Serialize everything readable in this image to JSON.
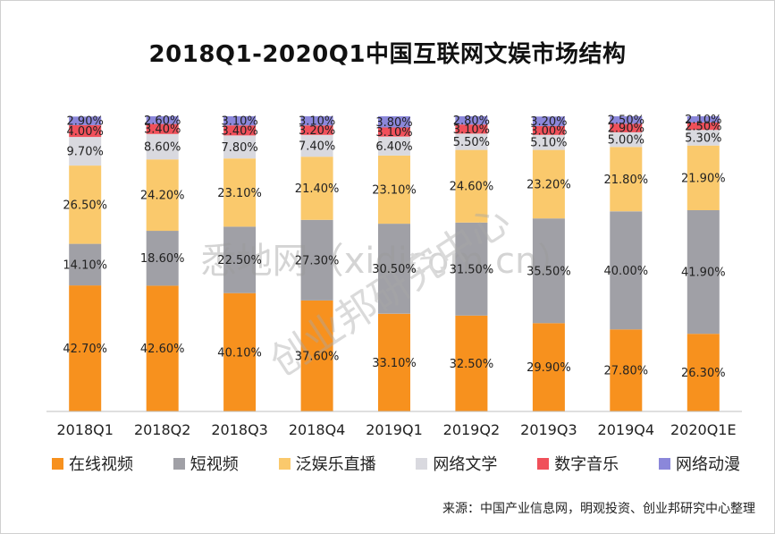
{
  "title": "2018Q1-2020Q1中国互联网文娱市场结构",
  "source": "来源：中国产业信息网，明观投资、创业邦研究中心整理",
  "watermark": {
    "line1": "悉地网（xidicom.cn）",
    "line2": "创业邦研究中心"
  },
  "colors": {
    "online_video": "#F7911E",
    "short_video": "#A0A0A6",
    "live": "#FAC96C",
    "literature": "#D9D9DF",
    "music": "#F0505A",
    "anime": "#8B87DA"
  },
  "chart_data": {
    "type": "bar",
    "stacked": true,
    "title": "2018Q1-2020Q1中国互联网文娱市场结构",
    "categories": [
      "2018Q1",
      "2018Q2",
      "2018Q3",
      "2018Q4",
      "2019Q1",
      "2019Q2",
      "2019Q3",
      "2019Q4",
      "2020Q1E"
    ],
    "ylim": [
      0,
      100
    ],
    "grid": false,
    "legend_position": "bottom",
    "series": [
      {
        "name": "在线视频",
        "color": "#F7911E",
        "values": [
          42.7,
          42.6,
          40.1,
          37.6,
          33.1,
          32.5,
          29.9,
          27.8,
          26.3
        ],
        "labels": [
          "42.70%",
          "42.60%",
          "40.10%",
          "37.60%",
          "33.10%",
          "32.50%",
          "29.90%",
          "27.80%",
          "26.30%"
        ]
      },
      {
        "name": "短视频",
        "color": "#A0A0A6",
        "values": [
          14.1,
          18.6,
          22.5,
          27.3,
          30.5,
          31.5,
          35.5,
          40.0,
          41.9
        ],
        "labels": [
          "14.10%",
          "18.60%",
          "22.50%",
          "27.30%",
          "30.50%",
          "31.50%",
          "35.50%",
          "40.00%",
          "41.90%"
        ]
      },
      {
        "name": "泛娱乐直播",
        "color": "#FAC96C",
        "values": [
          26.5,
          24.2,
          23.1,
          21.4,
          23.1,
          24.6,
          23.2,
          21.8,
          21.9
        ],
        "labels": [
          "26.50%",
          "24.20%",
          "23.10%",
          "21.40%",
          "23.10%",
          "24.60%",
          "23.20%",
          "21.80%",
          "21.90%"
        ]
      },
      {
        "name": "网络文学",
        "color": "#D9D9DF",
        "values": [
          9.7,
          8.6,
          7.8,
          7.4,
          6.4,
          5.5,
          5.1,
          5.0,
          5.3
        ],
        "labels": [
          "9.70%",
          "8.60%",
          "7.80%",
          "7.40%",
          "6.40%",
          "5.50%",
          "5.10%",
          "5.00%",
          "5.30%"
        ]
      },
      {
        "name": "数字音乐",
        "color": "#F0505A",
        "values": [
          4.0,
          3.4,
          3.4,
          3.2,
          3.1,
          3.1,
          3.0,
          2.9,
          2.5
        ],
        "labels": [
          "4.00%",
          "3.40%",
          "3.40%",
          "3.20%",
          "3.10%",
          "3.10%",
          "3.00%",
          "2.90%",
          "2.50%"
        ]
      },
      {
        "name": "网络动漫",
        "color": "#8B87DA",
        "values": [
          2.9,
          2.6,
          3.1,
          3.1,
          3.8,
          2.8,
          3.2,
          2.5,
          2.1
        ],
        "labels": [
          "2.90%",
          "2.60%",
          "3.10%",
          "3.10%",
          "3.80%",
          "2.80%",
          "3.20%",
          "2.50%",
          "2.10%"
        ]
      }
    ]
  }
}
